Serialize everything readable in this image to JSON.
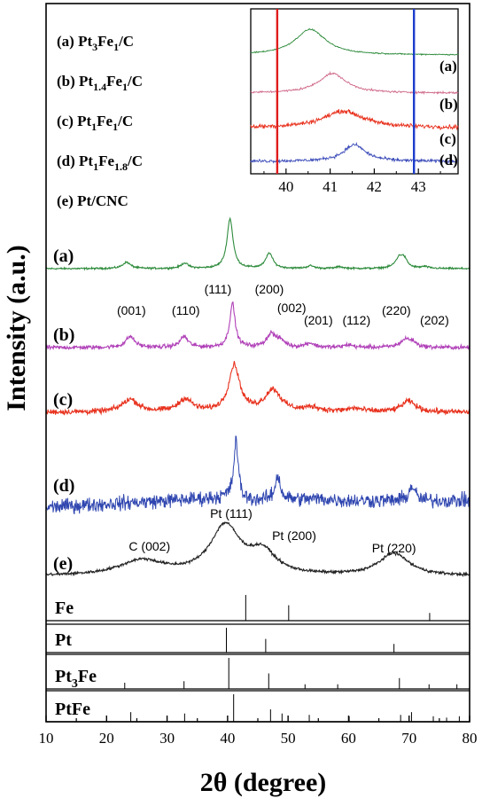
{
  "chart_data": {
    "type": "line",
    "xlabel": "2θ (degree)",
    "ylabel": "Intensity (a.u.)",
    "xlim": [
      10,
      80
    ],
    "x_ticks": [
      10,
      20,
      30,
      40,
      50,
      60,
      70,
      80
    ],
    "legend": [
      {
        "tag": "(a)",
        "base": "Pt",
        "sub1": "3",
        "mid": "Fe",
        "sub2": "1",
        "tail": "/C"
      },
      {
        "tag": "(b)",
        "base": "Pt",
        "sub1": "1.4",
        "mid": "Fe",
        "sub2": "1",
        "tail": "/C"
      },
      {
        "tag": "(c)",
        "base": "Pt",
        "sub1": "1",
        "mid": "Fe",
        "sub2": "1",
        "tail": "/C"
      },
      {
        "tag": "(d)",
        "base": "Pt",
        "sub1": "1",
        "mid": "Fe",
        "sub2": "1.8",
        "tail": "/C"
      },
      {
        "tag": "(e)",
        "base": "Pt/CNC",
        "sub1": "",
        "mid": "",
        "sub2": "",
        "tail": ""
      }
    ],
    "series": [
      {
        "name": "(a)",
        "color": "#2e8b3c",
        "noise": 0.6,
        "baseline": [
          [
            10,
            0
          ],
          [
            80,
            0
          ]
        ],
        "peaks": [
          [
            23.3,
            7,
            0.8
          ],
          [
            32.9,
            6,
            0.7
          ],
          [
            40.4,
            55,
            0.6
          ],
          [
            46.9,
            17,
            0.7
          ],
          [
            53.7,
            3,
            0.7
          ],
          [
            58.5,
            2,
            0.7
          ],
          [
            68.4,
            12,
            0.8
          ],
          [
            69.2,
            8,
            0.6
          ],
          [
            72.6,
            2,
            0.7
          ]
        ]
      },
      {
        "name": "(b)",
        "color": "#b040b8",
        "noise": 1.5,
        "baseline": [
          [
            10,
            0
          ],
          [
            80,
            0
          ]
        ],
        "peaks": [
          [
            23.9,
            13,
            0.9
          ],
          [
            32.8,
            13,
            0.8
          ],
          [
            40.8,
            52,
            0.55
          ],
          [
            47.2,
            16,
            0.9
          ],
          [
            48.8,
            7,
            0.8
          ],
          [
            53.6,
            5,
            0.9
          ],
          [
            60.0,
            3,
            0.9
          ],
          [
            69.4,
            9,
            1.0
          ],
          [
            70.6,
            5,
            0.8
          ]
        ]
      },
      {
        "name": "(c)",
        "color": "#e8321e",
        "noise": 2.0,
        "baseline": [
          [
            10,
            0
          ],
          [
            80,
            0
          ]
        ],
        "peaks": [
          [
            23.9,
            15,
            1.6
          ],
          [
            33.0,
            15,
            1.4
          ],
          [
            41.1,
            55,
            1.1
          ],
          [
            47.5,
            26,
            1.6
          ],
          [
            54.0,
            5,
            1.6
          ],
          [
            61.0,
            4,
            1.6
          ],
          [
            69.9,
            13,
            1.4
          ]
        ]
      },
      {
        "name": "(d)",
        "color": "#2f46b0",
        "noise": 5.5,
        "baseline": [
          [
            10,
            0
          ],
          [
            40,
            12
          ],
          [
            42,
            8
          ],
          [
            55,
            10
          ],
          [
            60,
            8
          ],
          [
            80,
            8
          ]
        ],
        "peaks": [
          [
            41.4,
            72,
            0.45
          ],
          [
            48.3,
            30,
            0.5
          ],
          [
            70.5,
            18,
            0.6
          ]
        ]
      },
      {
        "name": "(e)",
        "color": "#222222",
        "noise": 0.8,
        "baseline": [
          [
            10,
            0
          ],
          [
            80,
            0
          ]
        ],
        "peaks": [
          [
            25.8,
            14,
            4.5
          ],
          [
            39.6,
            46,
            3.0
          ],
          [
            45.8,
            20,
            2.6
          ],
          [
            67.5,
            21,
            3.0
          ]
        ]
      }
    ],
    "peak_labels_b": [
      {
        "text": "(001)",
        "x": 24.1
      },
      {
        "text": "(110)",
        "x": 33.1
      },
      {
        "text": "(111)",
        "x": 38.4
      },
      {
        "text": "(200)",
        "x": 46.9
      },
      {
        "text": "(002)",
        "x": 50.6
      },
      {
        "text": "(201)",
        "x": 55.0
      },
      {
        "text": "(112)",
        "x": 61.3
      },
      {
        "text": "(220)",
        "x": 67.9
      },
      {
        "text": "(202)",
        "x": 74.2
      }
    ],
    "peak_labels_e": [
      {
        "text": "C (002)",
        "x": 27.1
      },
      {
        "text": "Pt (111)",
        "x": 40.6
      },
      {
        "text": "Pt (200)",
        "x": 51.0
      },
      {
        "text": "Pt (220)",
        "x": 67.5
      }
    ],
    "reference_patterns": [
      {
        "name": "Fe",
        "sub": "",
        "name2": "",
        "lines": [
          [
            43.0,
            1.0
          ],
          [
            50.1,
            0.6
          ],
          [
            73.4,
            0.3
          ]
        ]
      },
      {
        "name": "Pt",
        "sub": "",
        "name2": "",
        "lines": [
          [
            39.8,
            1.0
          ],
          [
            46.3,
            0.55
          ],
          [
            67.5,
            0.35
          ]
        ]
      },
      {
        "name": "Pt",
        "sub": "3",
        "name2": "Fe",
        "lines": [
          [
            23.0,
            0.2
          ],
          [
            32.8,
            0.25
          ],
          [
            40.2,
            1.0
          ],
          [
            46.8,
            0.5
          ],
          [
            52.8,
            0.15
          ],
          [
            58.2,
            0.15
          ],
          [
            68.4,
            0.35
          ],
          [
            73.3,
            0.15
          ],
          [
            77.9,
            0.15
          ]
        ]
      },
      {
        "name": "PtFe",
        "sub": "",
        "name2": "",
        "lines": [
          [
            24.0,
            0.35
          ],
          [
            32.9,
            0.3
          ],
          [
            41.0,
            1.0
          ],
          [
            47.1,
            0.45
          ],
          [
            49.0,
            0.3
          ],
          [
            53.5,
            0.25
          ],
          [
            60.1,
            0.2
          ],
          [
            68.6,
            0.25
          ],
          [
            70.4,
            0.35
          ],
          [
            74.0,
            0.2
          ],
          [
            76.2,
            0.15
          ],
          [
            78.3,
            0.2
          ]
        ]
      }
    ],
    "inset": {
      "xlim": [
        39.2,
        43.9
      ],
      "x_ticks": [
        40,
        41,
        42,
        43
      ],
      "vlines": [
        {
          "x": 39.8,
          "color": "#e01c1c"
        },
        {
          "x": 42.9,
          "color": "#1c3ccc"
        }
      ],
      "series": [
        {
          "name": "(a)",
          "color": "#2e8b3c",
          "peak": 40.55,
          "width": 0.42,
          "height": 34,
          "noise": 0.5
        },
        {
          "name": "(b)",
          "color": "#d06a8a",
          "peak": 41.05,
          "width": 0.38,
          "height": 26,
          "noise": 0.8
        },
        {
          "name": "(c)",
          "color": "#e8321e",
          "peak": 41.3,
          "width": 0.55,
          "height": 22,
          "noise": 1.8
        },
        {
          "name": "(d)",
          "color": "#3a4ab8",
          "peak": 41.55,
          "width": 0.3,
          "height": 22,
          "noise": 1.3
        }
      ]
    }
  }
}
